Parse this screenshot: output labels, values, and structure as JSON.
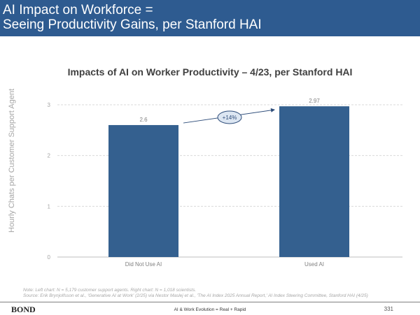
{
  "header": {
    "line1": "AI Impact on Workforce =",
    "line2": "Seeing Productivity Gains, per Stanford HAI"
  },
  "chart_data": {
    "type": "bar",
    "title": "Impacts of AI on Worker Productivity – 4/23, per Stanford HAI",
    "categories": [
      "Did Not Use AI",
      "Used AI"
    ],
    "values": [
      2.6,
      2.97
    ],
    "value_labels": [
      "2.6",
      "2.97"
    ],
    "ylabel": "Hourly Chats per Customer Support Agent",
    "ylim": [
      0,
      3
    ],
    "yticks": [
      0,
      1,
      2,
      3
    ],
    "annotation": "+14%",
    "bar_color": "#34608f",
    "grid": "dashed"
  },
  "footer": {
    "note": "Note: Left chart: N = 5,179 customer support agents. Right chart: N = 1,018 scientists.",
    "source": "Source: Erik Brynjolfsson et al., 'Generative AI at Work' (2/25) via Nestor Maslej et al., 'The AI Index 2025 Annual Report,' AI Index Steering Committee, Stanford HAI (4/25)",
    "logo": "BOND",
    "center": "AI & Work Evolution = Real + Rapid",
    "page": "331"
  }
}
